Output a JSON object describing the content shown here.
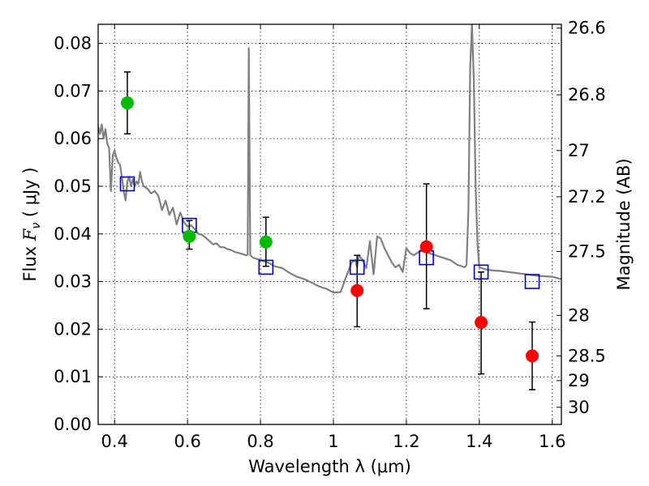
{
  "chart_data": {
    "type": "scatter",
    "xlabel": "Wavelength  λ (μm)",
    "ylabel": "Flux  F_ν  ( μJy )",
    "ylabel_parts": {
      "prefix": "Flux  ",
      "symbol": "F",
      "subscript": "ν",
      "suffix": "  ( μJy )"
    },
    "y2label": "Magnitude (AB)",
    "xlim": [
      0.355,
      1.625
    ],
    "ylim": [
      0.0,
      0.084
    ],
    "grid": true,
    "x_ticks": [
      0.4,
      0.6,
      0.8,
      1.0,
      1.2,
      1.4,
      1.6
    ],
    "x_tick_labels": [
      "0.4",
      "0.6",
      "0.8",
      "1",
      "1.2",
      "1.4",
      "1.6"
    ],
    "y_ticks": [
      0.0,
      0.01,
      0.02,
      0.03,
      0.04,
      0.05,
      0.06,
      0.07,
      0.08
    ],
    "y_tick_labels": [
      "0.00",
      "0.01",
      "0.02",
      "0.03",
      "0.04",
      "0.05",
      "0.06",
      "0.07",
      "0.08"
    ],
    "y2_ticks": [
      {
        "label": "26.6",
        "flux": 0.0832
      },
      {
        "label": "26.8",
        "flux": 0.0692
      },
      {
        "label": "27",
        "flux": 0.0575
      },
      {
        "label": "27.2",
        "flux": 0.0478
      },
      {
        "label": "27.5",
        "flux": 0.0363
      },
      {
        "label": "28",
        "flux": 0.0229
      },
      {
        "label": "28.5",
        "flux": 0.0144
      },
      {
        "label": "29",
        "flux": 0.0092
      },
      {
        "label": "30",
        "flux": 0.0036
      }
    ],
    "series": [
      {
        "type": "line",
        "color": "#808080",
        "points": [
          [
            0.355,
            0.0625
          ],
          [
            0.36,
            0.061
          ],
          [
            0.365,
            0.063
          ],
          [
            0.37,
            0.06
          ],
          [
            0.375,
            0.062
          ],
          [
            0.38,
            0.059
          ],
          [
            0.385,
            0.058
          ],
          [
            0.39,
            0.049
          ],
          [
            0.395,
            0.0565
          ],
          [
            0.4,
            0.0575
          ],
          [
            0.405,
            0.056
          ],
          [
            0.41,
            0.055
          ],
          [
            0.415,
            0.0545
          ],
          [
            0.42,
            0.052
          ],
          [
            0.425,
            0.049
          ],
          [
            0.43,
            0.047
          ],
          [
            0.435,
            0.051
          ],
          [
            0.44,
            0.052
          ],
          [
            0.445,
            0.05
          ],
          [
            0.45,
            0.0515
          ],
          [
            0.455,
            0.05
          ],
          [
            0.46,
            0.051
          ],
          [
            0.465,
            0.0505
          ],
          [
            0.47,
            0.053
          ],
          [
            0.475,
            0.051
          ],
          [
            0.48,
            0.05
          ],
          [
            0.49,
            0.0495
          ],
          [
            0.5,
            0.0485
          ],
          [
            0.51,
            0.049
          ],
          [
            0.52,
            0.048
          ],
          [
            0.53,
            0.045
          ],
          [
            0.54,
            0.047
          ],
          [
            0.55,
            0.044
          ],
          [
            0.56,
            0.0455
          ],
          [
            0.57,
            0.042
          ],
          [
            0.58,
            0.0445
          ],
          [
            0.59,
            0.0425
          ],
          [
            0.6,
            0.0415
          ],
          [
            0.61,
            0.0418
          ],
          [
            0.62,
            0.041
          ],
          [
            0.63,
            0.04
          ],
          [
            0.64,
            0.0398
          ],
          [
            0.65,
            0.0392
          ],
          [
            0.66,
            0.0385
          ],
          [
            0.67,
            0.0378
          ],
          [
            0.68,
            0.038
          ],
          [
            0.69,
            0.0372
          ],
          [
            0.7,
            0.0372
          ],
          [
            0.71,
            0.0368
          ],
          [
            0.72,
            0.0366
          ],
          [
            0.73,
            0.0362
          ],
          [
            0.74,
            0.036
          ],
          [
            0.75,
            0.0358
          ],
          [
            0.76,
            0.0355
          ],
          [
            0.765,
            0.0356
          ],
          [
            0.768,
            0.079
          ],
          [
            0.772,
            0.0355
          ],
          [
            0.78,
            0.035
          ],
          [
            0.8,
            0.0345
          ],
          [
            0.82,
            0.034
          ],
          [
            0.84,
            0.0332
          ],
          [
            0.86,
            0.0328
          ],
          [
            0.88,
            0.0318
          ],
          [
            0.9,
            0.031
          ],
          [
            0.92,
            0.0305
          ],
          [
            0.94,
            0.0298
          ],
          [
            0.96,
            0.029
          ],
          [
            0.98,
            0.0285
          ],
          [
            1.0,
            0.0277
          ],
          [
            1.02,
            0.0278
          ],
          [
            1.03,
            0.03
          ],
          [
            1.04,
            0.032
          ],
          [
            1.05,
            0.034
          ],
          [
            1.06,
            0.0345
          ],
          [
            1.065,
            0.033
          ],
          [
            1.07,
            0.0355
          ],
          [
            1.08,
            0.0345
          ],
          [
            1.09,
            0.0328
          ],
          [
            1.1,
            0.0385
          ],
          [
            1.11,
            0.0315
          ],
          [
            1.12,
            0.0395
          ],
          [
            1.13,
            0.039
          ],
          [
            1.14,
            0.037
          ],
          [
            1.15,
            0.0355
          ],
          [
            1.16,
            0.034
          ],
          [
            1.17,
            0.033
          ],
          [
            1.18,
            0.0335
          ],
          [
            1.19,
            0.032
          ],
          [
            1.2,
            0.037
          ],
          [
            1.21,
            0.036
          ],
          [
            1.22,
            0.0355
          ],
          [
            1.24,
            0.0365
          ],
          [
            1.26,
            0.036
          ],
          [
            1.28,
            0.0355
          ],
          [
            1.3,
            0.035
          ],
          [
            1.32,
            0.0345
          ],
          [
            1.34,
            0.0335
          ],
          [
            1.36,
            0.033
          ],
          [
            1.365,
            0.0335
          ],
          [
            1.37,
            0.045
          ],
          [
            1.375,
            0.075
          ],
          [
            1.38,
            0.084
          ],
          [
            1.385,
            0.072
          ],
          [
            1.39,
            0.05
          ],
          [
            1.395,
            0.038
          ],
          [
            1.4,
            0.033
          ],
          [
            1.42,
            0.0325
          ],
          [
            1.44,
            0.0323
          ],
          [
            1.46,
            0.0322
          ],
          [
            1.48,
            0.032
          ],
          [
            1.5,
            0.0318
          ],
          [
            1.52,
            0.0316
          ],
          [
            1.54,
            0.0314
          ],
          [
            1.56,
            0.0312
          ],
          [
            1.58,
            0.0311
          ],
          [
            1.6,
            0.031
          ],
          [
            1.625,
            0.0305
          ]
        ]
      },
      {
        "type": "square-markers",
        "color": "#0000cc",
        "points": [
          [
            0.435,
            0.0505
          ],
          [
            0.605,
            0.0418
          ],
          [
            0.815,
            0.033
          ],
          [
            1.065,
            0.033
          ],
          [
            1.255,
            0.035
          ],
          [
            1.405,
            0.032
          ],
          [
            1.545,
            0.03
          ]
        ]
      },
      {
        "type": "circle-errorbar",
        "color": "#00bb00",
        "points": [
          {
            "x": 0.435,
            "y": 0.0675,
            "lo": 0.061,
            "hi": 0.074
          },
          {
            "x": 0.605,
            "y": 0.0395,
            "lo": 0.0368,
            "hi": 0.0428
          },
          {
            "x": 0.815,
            "y": 0.0383,
            "lo": 0.0332,
            "hi": 0.0435
          }
        ]
      },
      {
        "type": "circle-errorbar",
        "color": "#ff0000",
        "points": [
          {
            "x": 1.065,
            "y": 0.0281,
            "lo": 0.0205,
            "hi": 0.0355
          },
          {
            "x": 1.255,
            "y": 0.0373,
            "lo": 0.0243,
            "hi": 0.0505
          },
          {
            "x": 1.405,
            "y": 0.0214,
            "lo": 0.0106,
            "hi": 0.032
          },
          {
            "x": 1.545,
            "y": 0.0144,
            "lo": 0.0073,
            "hi": 0.0215
          }
        ]
      }
    ]
  }
}
